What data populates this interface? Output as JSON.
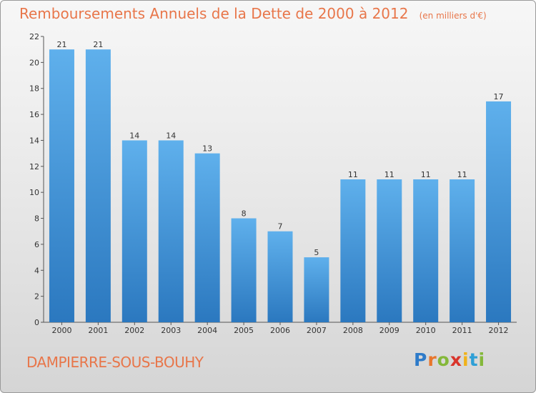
{
  "chart_data": {
    "type": "bar",
    "title": "Remboursements Annuels de la Dette de 2000 à 2012",
    "subtitle": "(en milliers d'€)",
    "categories": [
      "2000",
      "2001",
      "2002",
      "2003",
      "2004",
      "2005",
      "2006",
      "2007",
      "2008",
      "2009",
      "2010",
      "2011",
      "2012"
    ],
    "values": [
      21,
      21,
      14,
      14,
      13,
      8,
      7,
      5,
      11,
      11,
      11,
      11,
      17
    ],
    "ylim": [
      0,
      22
    ],
    "yticks": [
      0,
      2,
      4,
      6,
      8,
      10,
      12,
      14,
      16,
      18,
      20,
      22
    ],
    "xlabel": "",
    "ylabel": "",
    "grid": false,
    "bar_color": "#3c8fd6",
    "data_labels": true
  },
  "city": "DAMPIERRE-SOUS-BOUHY",
  "logo": {
    "letters": [
      "P",
      "r",
      "o",
      "x",
      "i",
      "t",
      "i"
    ],
    "colors": [
      "#2e7bc9",
      "#e8762c",
      "#84b83a",
      "#d9342b",
      "#f0b21a",
      "#2e9fd6",
      "#84b83a"
    ]
  }
}
